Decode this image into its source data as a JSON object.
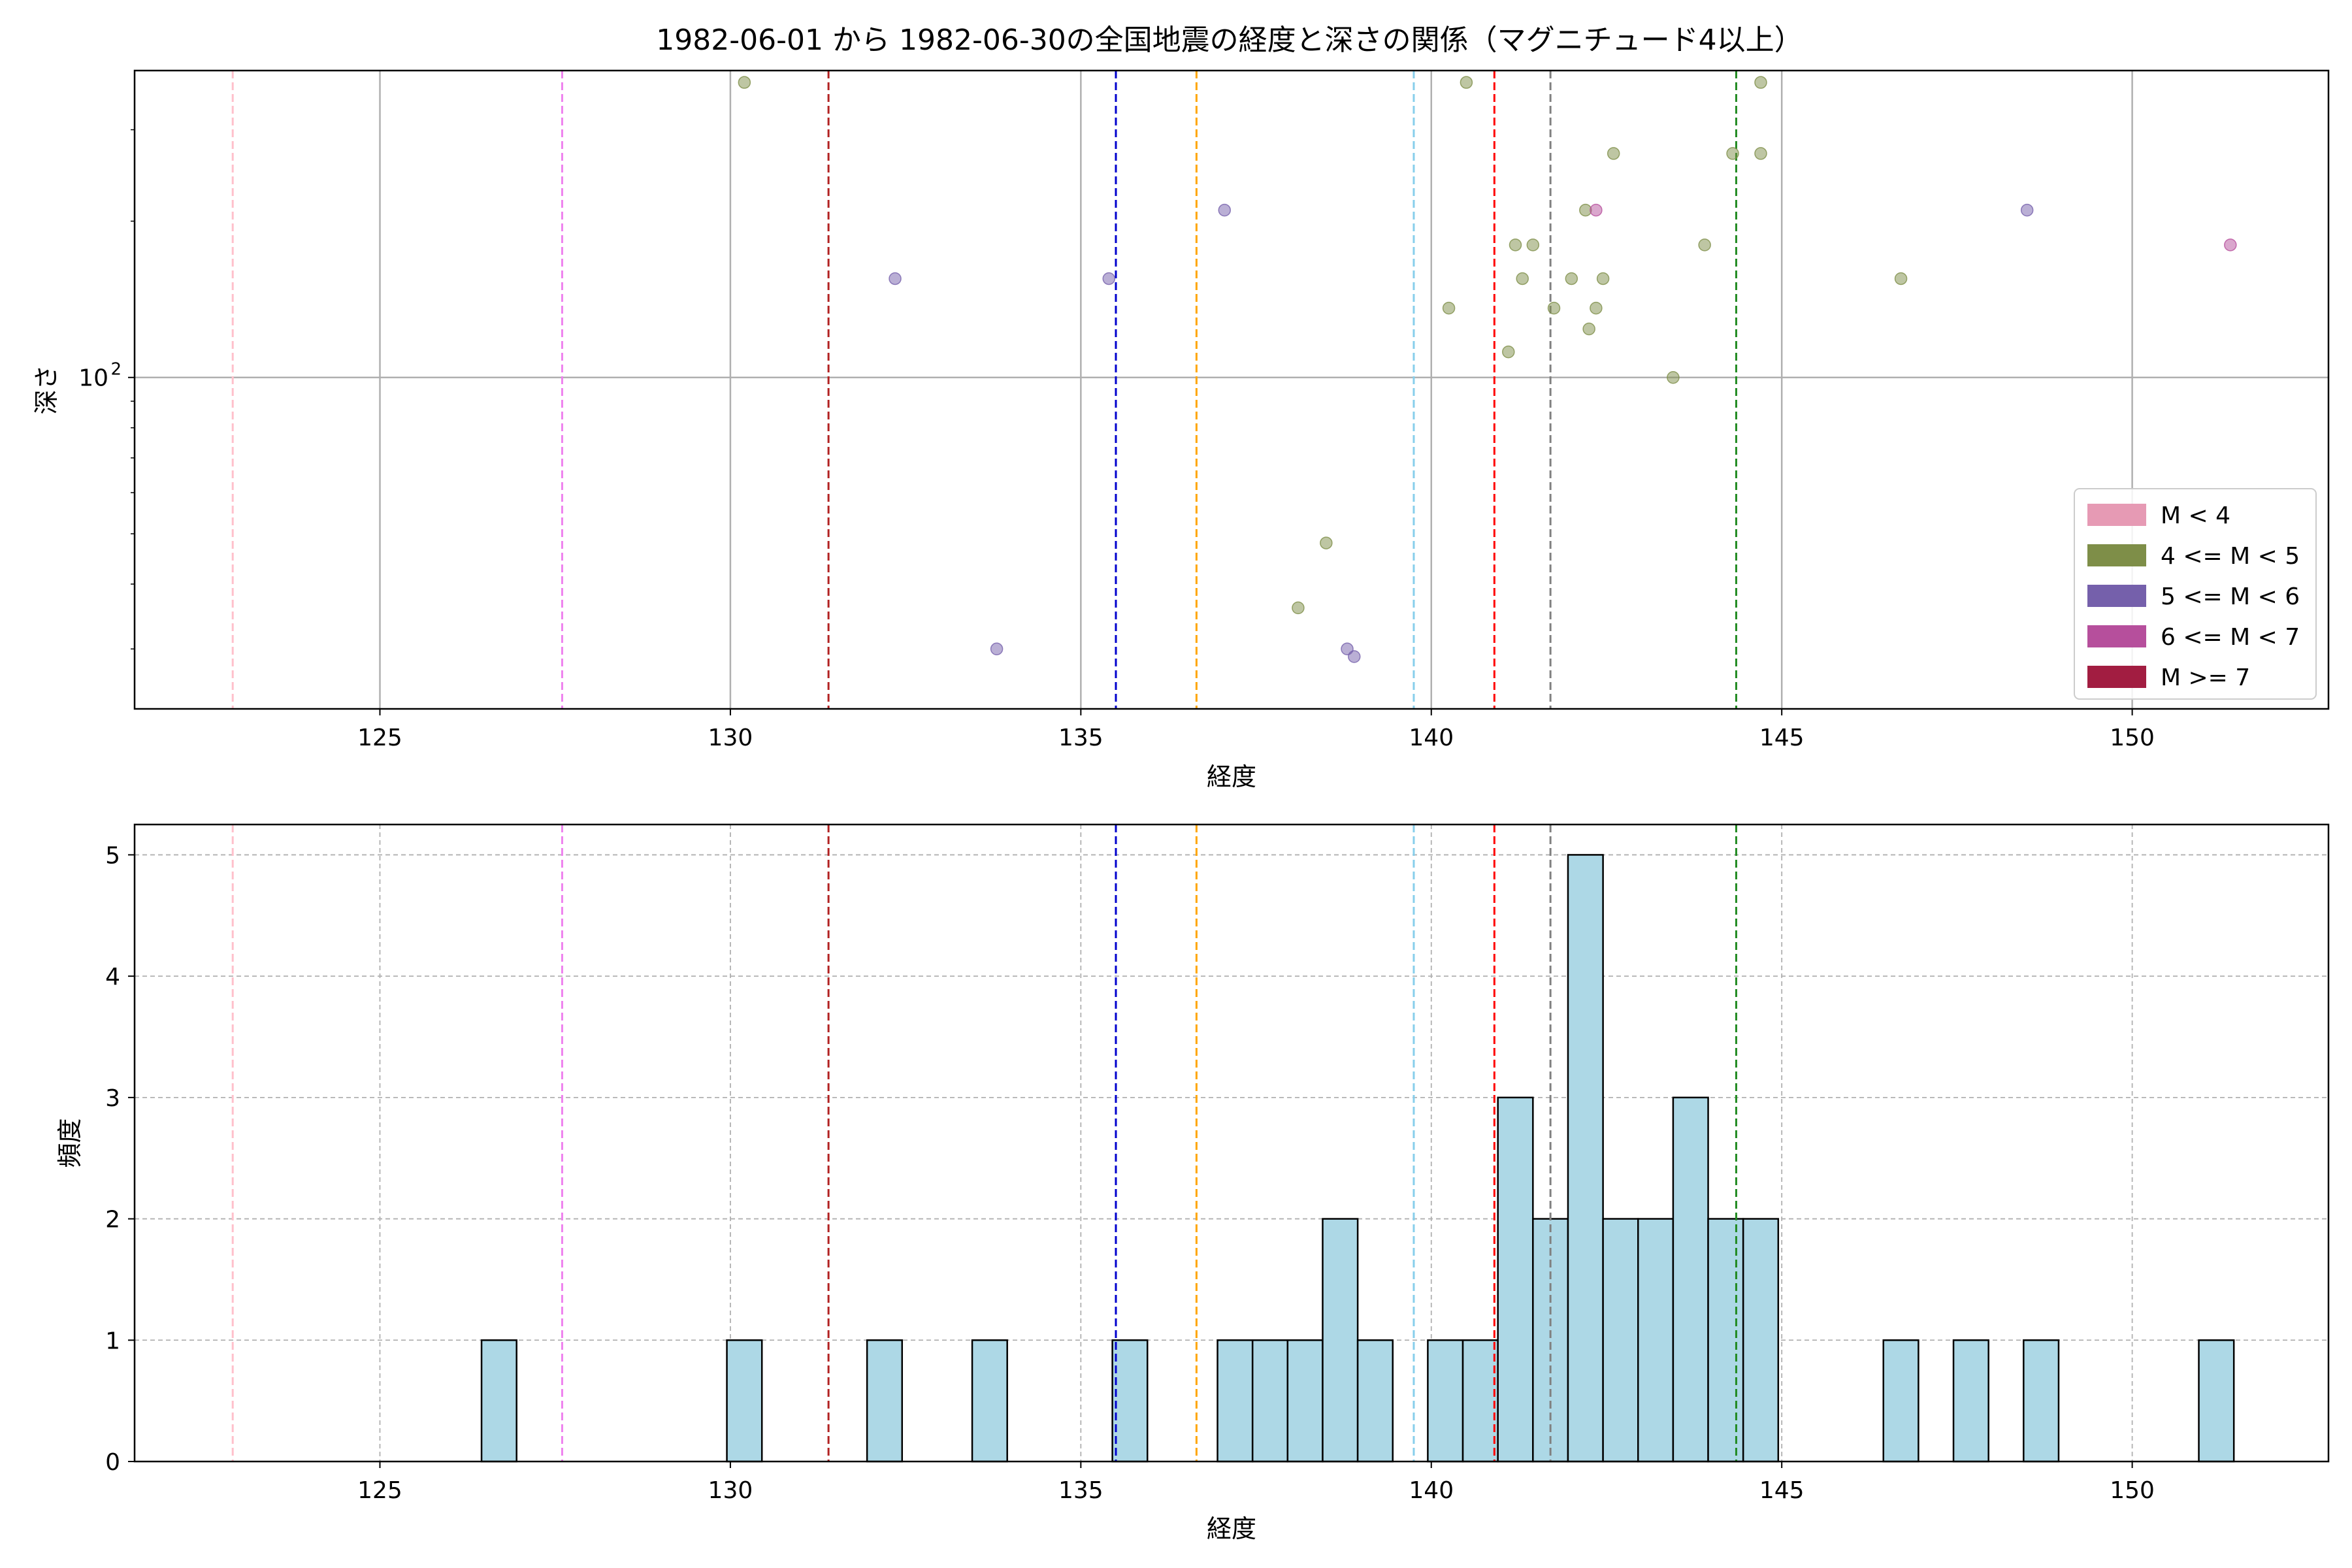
{
  "chart_data": [
    {
      "type": "scatter",
      "title": "1982-06-01 から 1982-06-30の全国地震の経度と深さの関係（マグニチュード4以上）",
      "xlabel": "経度",
      "ylabel": "深さ",
      "xlim": [
        121.5,
        152.8
      ],
      "ylim": [
        23,
        390
      ],
      "yscale": "log",
      "x_ticks": [
        "125",
        "130",
        "135",
        "140",
        "145",
        "150"
      ],
      "y_tick_labels": [
        {
          "value": 100,
          "label": "10",
          "exponent": "2"
        }
      ],
      "grid": true,
      "legend_position": "lower-right",
      "legend": [
        {
          "label": "M < 4",
          "color": "#e69ab4"
        },
        {
          "label": "4 <= M < 5",
          "color": "#7e8e48"
        },
        {
          "label": "5 <= M < 6",
          "color": "#7560ab"
        },
        {
          "label": "6 <= M < 7",
          "color": "#b64f9c"
        },
        {
          "label": "M >= 7",
          "color": "#a21d41"
        }
      ],
      "series": [
        {
          "name": "4 <= M < 5",
          "color": "#7e8e48",
          "points": [
            {
              "x": 130.2,
              "y": 370
            },
            {
              "x": 140.5,
              "y": 370
            },
            {
              "x": 144.7,
              "y": 370
            },
            {
              "x": 142.6,
              "y": 270
            },
            {
              "x": 144.3,
              "y": 270
            },
            {
              "x": 144.7,
              "y": 270
            },
            {
              "x": 142.2,
              "y": 210
            },
            {
              "x": 141.2,
              "y": 180
            },
            {
              "x": 141.45,
              "y": 180
            },
            {
              "x": 143.9,
              "y": 180
            },
            {
              "x": 141.3,
              "y": 155
            },
            {
              "x": 142.0,
              "y": 155
            },
            {
              "x": 142.45,
              "y": 155
            },
            {
              "x": 146.7,
              "y": 155
            },
            {
              "x": 140.25,
              "y": 136
            },
            {
              "x": 141.75,
              "y": 136
            },
            {
              "x": 142.35,
              "y": 136
            },
            {
              "x": 142.25,
              "y": 124
            },
            {
              "x": 141.1,
              "y": 112
            },
            {
              "x": 143.45,
              "y": 100
            },
            {
              "x": 138.5,
              "y": 48
            },
            {
              "x": 138.1,
              "y": 36
            }
          ]
        },
        {
          "name": "5 <= M < 6",
          "color": "#7560ab",
          "points": [
            {
              "x": 137.05,
              "y": 210
            },
            {
              "x": 148.5,
              "y": 210
            },
            {
              "x": 132.35,
              "y": 155
            },
            {
              "x": 135.4,
              "y": 155
            },
            {
              "x": 133.8,
              "y": 30
            },
            {
              "x": 138.8,
              "y": 30
            },
            {
              "x": 138.9,
              "y": 29
            }
          ]
        },
        {
          "name": "6 <= M < 7",
          "color": "#b64f9c",
          "points": [
            {
              "x": 142.35,
              "y": 210
            },
            {
              "x": 151.4,
              "y": 180
            }
          ]
        }
      ],
      "reference_lines": [
        {
          "x": 122.9,
          "color": "#ffc0cb"
        },
        {
          "x": 127.6,
          "color": "#ee82ee"
        },
        {
          "x": 131.4,
          "color": "#b22222"
        },
        {
          "x": 135.5,
          "color": "#0000cd"
        },
        {
          "x": 136.65,
          "color": "#ffa500"
        },
        {
          "x": 139.75,
          "color": "#87ceeb"
        },
        {
          "x": 140.9,
          "color": "#ff0000"
        },
        {
          "x": 141.7,
          "color": "#808080"
        },
        {
          "x": 144.35,
          "color": "#228b22"
        }
      ]
    },
    {
      "type": "bar",
      "title": "",
      "xlabel": "経度",
      "ylabel": "頻度",
      "xlim": [
        121.5,
        152.8
      ],
      "ylim": [
        0,
        5.25
      ],
      "x_ticks": [
        "125",
        "130",
        "135",
        "140",
        "145",
        "150"
      ],
      "y_ticks": [
        "0",
        "1",
        "2",
        "3",
        "4",
        "5"
      ],
      "grid": true,
      "bar_color": "#add8e6",
      "bins": [
        {
          "x0": 126.45,
          "x1": 126.95,
          "count": 1
        },
        {
          "x0": 129.95,
          "x1": 130.45,
          "count": 1
        },
        {
          "x0": 131.95,
          "x1": 132.45,
          "count": 1
        },
        {
          "x0": 133.45,
          "x1": 133.95,
          "count": 1
        },
        {
          "x0": 135.45,
          "x1": 135.95,
          "count": 1
        },
        {
          "x0": 136.95,
          "x1": 137.45,
          "count": 1
        },
        {
          "x0": 137.45,
          "x1": 137.95,
          "count": 1
        },
        {
          "x0": 137.95,
          "x1": 138.45,
          "count": 1
        },
        {
          "x0": 138.45,
          "x1": 138.95,
          "count": 2
        },
        {
          "x0": 138.95,
          "x1": 139.45,
          "count": 1
        },
        {
          "x0": 139.95,
          "x1": 140.45,
          "count": 1
        },
        {
          "x0": 140.45,
          "x1": 140.95,
          "count": 1
        },
        {
          "x0": 140.95,
          "x1": 141.45,
          "count": 3
        },
        {
          "x0": 141.45,
          "x1": 141.95,
          "count": 2
        },
        {
          "x0": 141.95,
          "x1": 142.45,
          "count": 5
        },
        {
          "x0": 142.45,
          "x1": 142.95,
          "count": 2
        },
        {
          "x0": 142.95,
          "x1": 143.45,
          "count": 2
        },
        {
          "x0": 143.45,
          "x1": 143.95,
          "count": 3
        },
        {
          "x0": 143.95,
          "x1": 144.45,
          "count": 2
        },
        {
          "x0": 144.45,
          "x1": 144.95,
          "count": 2
        },
        {
          "x0": 146.45,
          "x1": 146.95,
          "count": 1
        },
        {
          "x0": 147.45,
          "x1": 147.95,
          "count": 1
        },
        {
          "x0": 148.45,
          "x1": 148.95,
          "count": 1
        },
        {
          "x0": 150.95,
          "x1": 151.45,
          "count": 1
        }
      ],
      "reference_lines": [
        {
          "x": 122.9,
          "color": "#ffc0cb"
        },
        {
          "x": 127.6,
          "color": "#ee82ee"
        },
        {
          "x": 131.4,
          "color": "#b22222"
        },
        {
          "x": 135.5,
          "color": "#0000cd"
        },
        {
          "x": 136.65,
          "color": "#ffa500"
        },
        {
          "x": 139.75,
          "color": "#87ceeb"
        },
        {
          "x": 140.9,
          "color": "#ff0000"
        },
        {
          "x": 141.7,
          "color": "#808080"
        },
        {
          "x": 144.35,
          "color": "#228b22"
        }
      ]
    }
  ]
}
